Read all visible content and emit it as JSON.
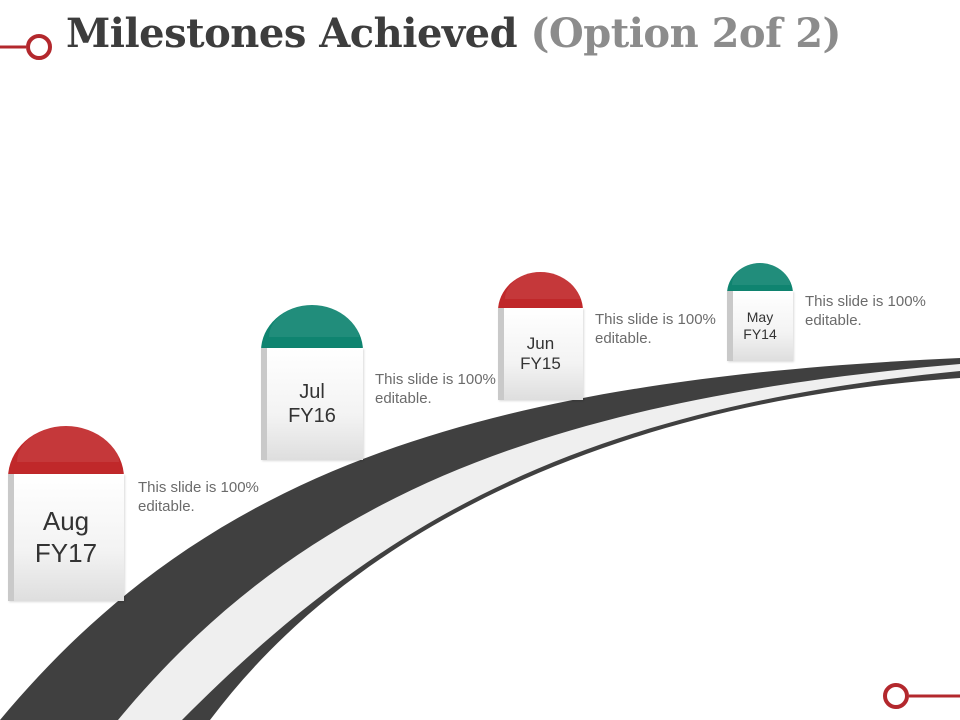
{
  "title": {
    "main": "Milestones Achieved",
    "sub": "(Option 2of 2)"
  },
  "colors": {
    "red": "#c0282a",
    "teal": "#0f8470",
    "road": "#404040",
    "road_stripe": "#efefef",
    "accent_line": "#b3282d"
  },
  "milestones": [
    {
      "month": "Aug",
      "year": "FY17",
      "cap_color": "red",
      "description": "This slide is 100% editable."
    },
    {
      "month": "Jul",
      "year": "FY16",
      "cap_color": "teal",
      "description": "This slide is 100% editable."
    },
    {
      "month": "Jun",
      "year": "FY15",
      "cap_color": "red",
      "description": "This slide is 100% editable."
    },
    {
      "month": "May",
      "year": "FY14",
      "cap_color": "teal",
      "description": "This slide is 100% editable."
    }
  ]
}
